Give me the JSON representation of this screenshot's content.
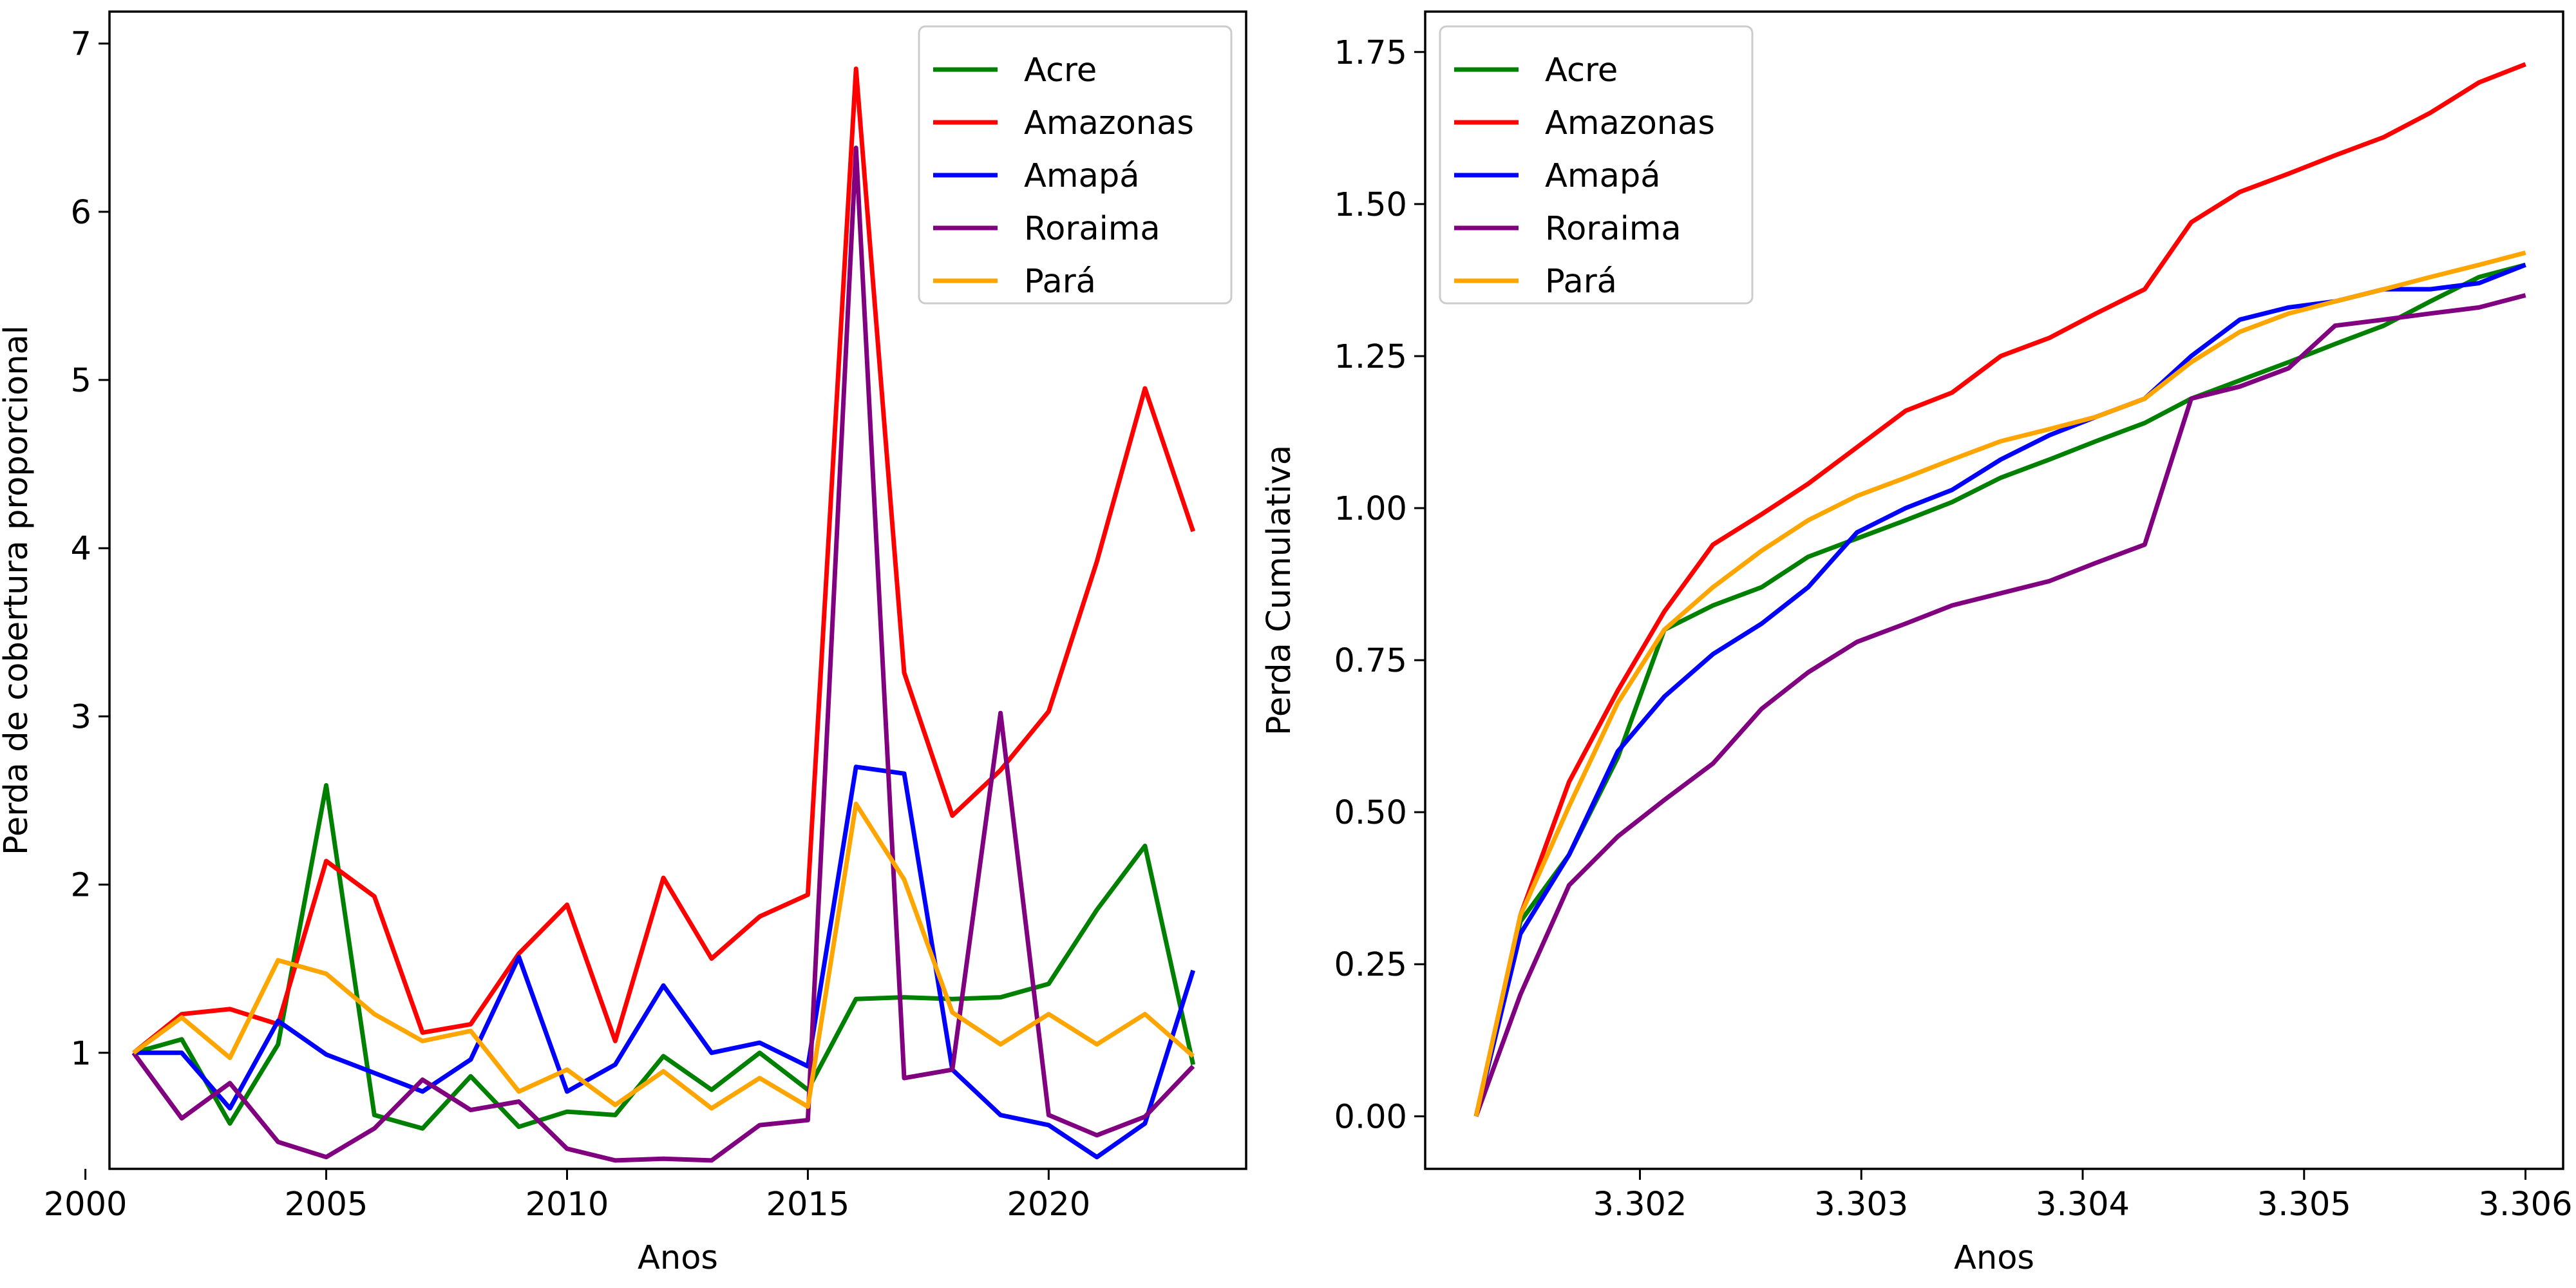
{
  "chart_data": [
    {
      "type": "line",
      "title": "",
      "xlabel": "Anos",
      "ylabel": "Perda de cobertura proporcional",
      "xlim": [
        2000.5,
        2024.1
      ],
      "ylim": [
        0.31,
        7.19
      ],
      "xticks": [
        2000,
        2005,
        2010,
        2015,
        2020
      ],
      "xtick_labels": [
        "2000",
        "2005",
        "2010",
        "2015",
        "2020"
      ],
      "yticks": [
        1,
        2,
        3,
        4,
        5,
        6,
        7
      ],
      "ytick_labels": [
        "1",
        "2",
        "3",
        "4",
        "5",
        "6",
        "7"
      ],
      "legend_position": "top-right",
      "grid": false,
      "x": [
        2001,
        2002,
        2003,
        2004,
        2005,
        2006,
        2007,
        2008,
        2009,
        2010,
        2011,
        2012,
        2013,
        2014,
        2015,
        2016,
        2017,
        2018,
        2019,
        2020,
        2021,
        2022,
        2023
      ],
      "series": [
        {
          "name": "Acre",
          "color": "#008000",
          "values": [
            1.0,
            1.08,
            0.58,
            1.05,
            2.59,
            0.63,
            0.55,
            0.86,
            0.56,
            0.65,
            0.63,
            0.98,
            0.78,
            1.0,
            0.78,
            1.32,
            1.33,
            1.32,
            1.33,
            1.41,
            1.85,
            2.23,
            0.93
          ]
        },
        {
          "name": "Amazonas",
          "color": "#ff0000",
          "values": [
            1.0,
            1.23,
            1.26,
            1.17,
            2.14,
            1.93,
            1.12,
            1.17,
            1.59,
            1.88,
            1.07,
            2.04,
            1.56,
            1.81,
            1.94,
            6.85,
            3.26,
            2.41,
            2.68,
            3.03,
            3.92,
            4.95,
            4.1
          ]
        },
        {
          "name": "Amapá",
          "color": "#0000ff",
          "values": [
            1.0,
            1.0,
            0.67,
            1.19,
            0.99,
            0.88,
            0.77,
            0.96,
            1.57,
            0.77,
            0.93,
            1.4,
            1.0,
            1.06,
            0.92,
            2.7,
            2.66,
            0.9,
            0.63,
            0.57,
            0.38,
            0.58,
            1.49
          ]
        },
        {
          "name": "Roraima",
          "color": "#800080",
          "values": [
            1.0,
            0.61,
            0.82,
            0.47,
            0.38,
            0.55,
            0.84,
            0.66,
            0.71,
            0.43,
            0.36,
            0.37,
            0.36,
            0.57,
            0.6,
            6.38,
            0.85,
            0.9,
            3.02,
            0.63,
            0.51,
            0.62,
            0.92
          ]
        },
        {
          "name": "Pará",
          "color": "#ffa500",
          "values": [
            1.0,
            1.21,
            0.97,
            1.55,
            1.47,
            1.23,
            1.07,
            1.13,
            0.77,
            0.9,
            0.69,
            0.89,
            0.67,
            0.85,
            0.68,
            2.48,
            2.03,
            1.24,
            1.05,
            1.23,
            1.05,
            1.23,
            0.98
          ]
        }
      ]
    },
    {
      "type": "line",
      "title": "",
      "xlabel": "Anos",
      "ylabel": "Perda Cumulativa",
      "xlim": [
        3.30103,
        3.30617
      ],
      "ylim": [
        -0.0865,
        1.8165
      ],
      "xticks": [
        3.302,
        3.303,
        3.304,
        3.305,
        3.306
      ],
      "xtick_labels": [
        "3.302",
        "3.303",
        "3.304",
        "3.305",
        "3.306"
      ],
      "yticks": [
        0.0,
        0.25,
        0.5,
        0.75,
        1.0,
        1.25,
        1.5,
        1.75
      ],
      "ytick_labels": [
        "0.00",
        "0.25",
        "0.50",
        "0.75",
        "1.00",
        "1.25",
        "1.50",
        "1.75"
      ],
      "legend_position": "top-left",
      "grid": false,
      "x": [
        3.30126,
        3.30146,
        3.30168,
        3.3019,
        3.30211,
        3.30233,
        3.30255,
        3.30276,
        3.30298,
        3.3032,
        3.30341,
        3.30363,
        3.30385,
        3.30406,
        3.30428,
        3.30449,
        3.30471,
        3.30493,
        3.30514,
        3.30536,
        3.30557,
        3.30579,
        3.306
      ],
      "series": [
        {
          "name": "Acre",
          "color": "#008000",
          "values": [
            0.0,
            0.32,
            0.43,
            0.59,
            0.8,
            0.84,
            0.87,
            0.92,
            0.95,
            0.98,
            1.01,
            1.05,
            1.08,
            1.11,
            1.14,
            1.18,
            1.21,
            1.24,
            1.27,
            1.3,
            1.34,
            1.38,
            1.4
          ]
        },
        {
          "name": "Amazonas",
          "color": "#ff0000",
          "values": [
            0.0,
            0.33,
            0.55,
            0.7,
            0.83,
            0.94,
            0.99,
            1.04,
            1.1,
            1.16,
            1.19,
            1.25,
            1.28,
            1.32,
            1.36,
            1.47,
            1.52,
            1.55,
            1.58,
            1.61,
            1.65,
            1.7,
            1.73
          ]
        },
        {
          "name": "Amapá",
          "color": "#0000ff",
          "values": [
            0.0,
            0.3,
            0.43,
            0.6,
            0.69,
            0.76,
            0.81,
            0.87,
            0.96,
            1.0,
            1.03,
            1.08,
            1.12,
            1.15,
            1.18,
            1.25,
            1.31,
            1.33,
            1.34,
            1.36,
            1.36,
            1.37,
            1.4
          ]
        },
        {
          "name": "Roraima",
          "color": "#800080",
          "values": [
            0.0,
            0.2,
            0.38,
            0.46,
            0.52,
            0.58,
            0.67,
            0.73,
            0.78,
            0.81,
            0.84,
            0.86,
            0.88,
            0.91,
            0.94,
            1.18,
            1.2,
            1.23,
            1.3,
            1.31,
            1.32,
            1.33,
            1.35
          ]
        },
        {
          "name": "Pará",
          "color": "#ffa500",
          "values": [
            0.0,
            0.33,
            0.51,
            0.68,
            0.8,
            0.87,
            0.93,
            0.98,
            1.02,
            1.05,
            1.08,
            1.11,
            1.13,
            1.15,
            1.18,
            1.24,
            1.29,
            1.32,
            1.34,
            1.36,
            1.38,
            1.4,
            1.42
          ]
        }
      ]
    }
  ]
}
